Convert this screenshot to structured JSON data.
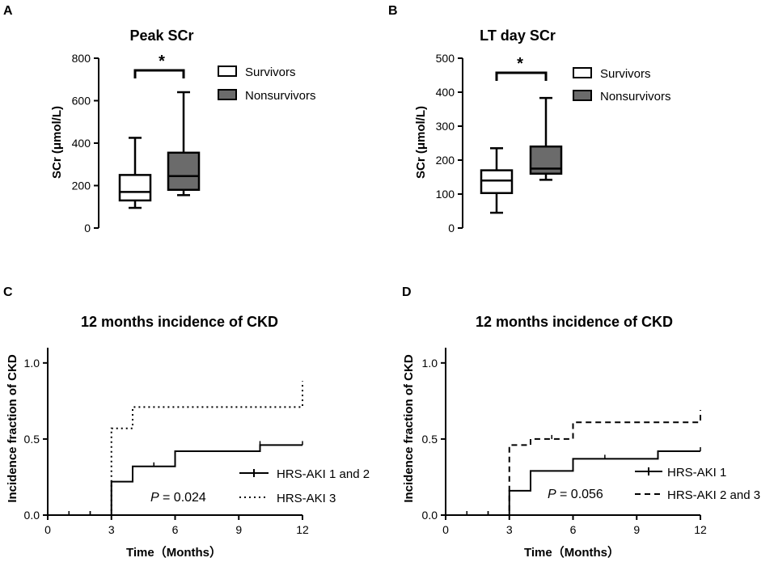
{
  "chart_data": [
    {
      "panel": "A",
      "type": "box",
      "title": "Peak SCr",
      "ylabel": "SCr (μmol/L)",
      "ylim": [
        0,
        800
      ],
      "yticks": [
        0,
        200,
        400,
        600,
        800
      ],
      "significance": "*",
      "series": [
        {
          "name": "Survivors",
          "color": "#ffffff",
          "min": 95,
          "q1": 130,
          "median": 170,
          "q3": 250,
          "max": 425
        },
        {
          "name": "Nonsurvivors",
          "color": "#6b6b6b",
          "min": 155,
          "q1": 180,
          "median": 245,
          "q3": 355,
          "max": 640
        }
      ]
    },
    {
      "panel": "B",
      "type": "box",
      "title": "LT day SCr",
      "ylabel": "SCr (μmol/L)",
      "ylim": [
        0,
        500
      ],
      "yticks": [
        0,
        100,
        200,
        300,
        400,
        500
      ],
      "significance": "*",
      "series": [
        {
          "name": "Survivors",
          "color": "#ffffff",
          "min": 45,
          "q1": 103,
          "median": 140,
          "q3": 170,
          "max": 235
        },
        {
          "name": "Nonsurvivors",
          "color": "#6b6b6b",
          "min": 142,
          "q1": 160,
          "median": 175,
          "q3": 240,
          "max": 383
        }
      ]
    },
    {
      "panel": "C",
      "type": "step",
      "title": "12 months incidence of CKD",
      "xlabel": "Time（Months）",
      "ylabel": "Incidence fraction of CKD",
      "xlim": [
        0,
        12
      ],
      "ylim": [
        0,
        1.1
      ],
      "xticks": [
        0,
        3,
        6,
        9,
        12
      ],
      "yticks": [
        "0.0",
        "0.5",
        "1.0"
      ],
      "pvalue_label": "P",
      "pvalue": "= 0.024",
      "series": [
        {
          "name": "HRS-AKI 1 and 2",
          "style": "solid",
          "x": [
            0,
            3,
            3.5,
            4,
            6,
            10,
            12
          ],
          "y": [
            0,
            0.22,
            0.22,
            0.32,
            0.42,
            0.46,
            0.46
          ],
          "censored": [
            1,
            2,
            5,
            10,
            12
          ]
        },
        {
          "name": "HRS-AKI 3",
          "style": "dotted",
          "x": [
            0,
            3,
            4,
            12,
            12
          ],
          "y": [
            0,
            0.57,
            0.71,
            0.71,
            0.88
          ],
          "censored": [
            1,
            2
          ]
        }
      ]
    },
    {
      "panel": "D",
      "type": "step",
      "title": "12 months incidence of CKD",
      "xlabel": "Time（Months）",
      "ylabel": "Incidence fraction of CKD",
      "xlim": [
        0,
        12
      ],
      "ylim": [
        0,
        1.1
      ],
      "xticks": [
        0,
        3,
        6,
        9,
        12
      ],
      "yticks": [
        "0.0",
        "0.5",
        "1.0"
      ],
      "pvalue_label": "P",
      "pvalue": "= 0.056",
      "series": [
        {
          "name": "HRS-AKI 1",
          "style": "solid",
          "x": [
            0,
            3,
            4,
            6,
            10,
            12
          ],
          "y": [
            0,
            0.16,
            0.29,
            0.37,
            0.42,
            0.42
          ],
          "censored": [
            1,
            2,
            7.5,
            12
          ]
        },
        {
          "name": "HRS-AKI 2 and 3",
          "style": "dashed",
          "x": [
            0,
            3,
            3.5,
            4,
            6,
            12,
            12
          ],
          "y": [
            0,
            0.46,
            0.46,
            0.5,
            0.61,
            0.61,
            0.69
          ],
          "censored": [
            1,
            2,
            5
          ]
        }
      ]
    }
  ]
}
